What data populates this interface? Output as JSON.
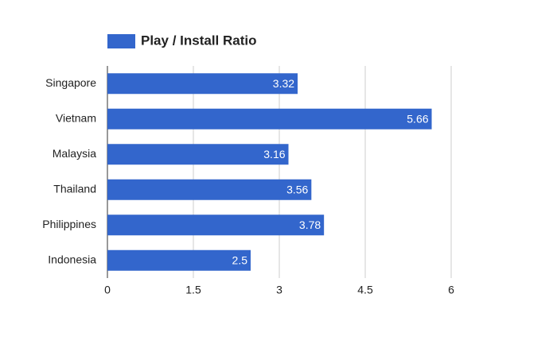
{
  "chart_data": {
    "type": "bar",
    "orientation": "horizontal",
    "categories": [
      "Singapore",
      "Vietnam",
      "Malaysia",
      "Thailand",
      "Philippines",
      "Indonesia"
    ],
    "series": [
      {
        "name": "Play / Install Ratio",
        "color": "#3366cc",
        "values": [
          3.32,
          5.66,
          3.16,
          3.56,
          3.78,
          2.5
        ]
      }
    ],
    "xlim": [
      0,
      6
    ],
    "xticks": [
      0,
      1.5,
      3,
      4.5,
      6
    ],
    "grid": true,
    "legend": "top",
    "data_labels": true
  }
}
